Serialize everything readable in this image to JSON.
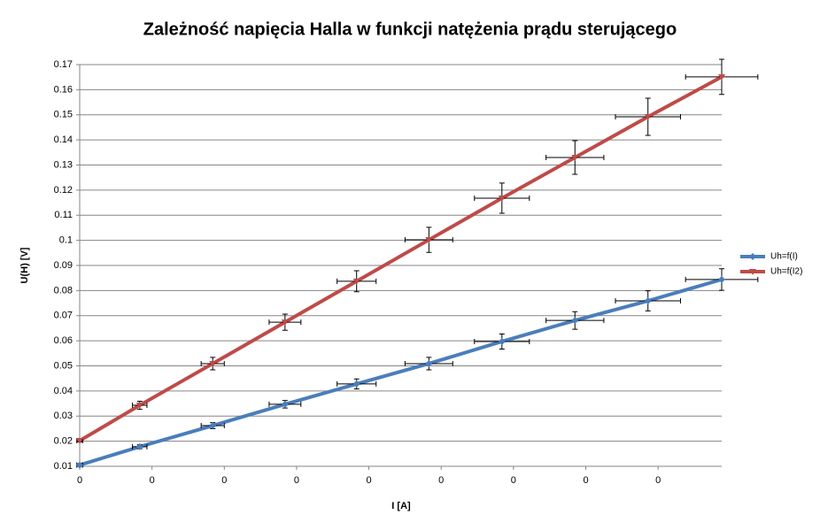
{
  "chart_data": {
    "type": "scatter-line",
    "title": "Zależność napięcia Halla w funkcji natężenia prądu sterującego",
    "x_label": "I [A]",
    "y_label": "U(H) [V]",
    "xlim": [
      0,
      0.00888
    ],
    "ylim": [
      0.01,
      0.17
    ],
    "xticks": [
      {
        "value": 0,
        "label": "0"
      },
      {
        "value": 0.001,
        "label": "0"
      },
      {
        "value": 0.002,
        "label": "0"
      },
      {
        "value": 0.003,
        "label": "0"
      },
      {
        "value": 0.004,
        "label": "0"
      },
      {
        "value": 0.005,
        "label": "0"
      },
      {
        "value": 0.006,
        "label": "0"
      },
      {
        "value": 0.007,
        "label": "0"
      },
      {
        "value": 0.008,
        "label": "0"
      }
    ],
    "yticks": [
      0.01,
      0.02,
      0.03,
      0.04,
      0.05,
      0.06,
      0.07,
      0.08,
      0.09,
      0.1,
      0.11,
      0.12,
      0.13,
      0.14,
      0.15,
      0.16,
      0.17
    ],
    "grid": true,
    "legend": "right",
    "series": [
      {
        "name": "Uh=f(I)",
        "color": "#4a7ebb",
        "marker": "diamond",
        "x": [
          0,
          0.00083,
          0.00184,
          0.00284,
          0.00383,
          0.00483,
          0.00584,
          0.00685,
          0.00786,
          0.00888
        ],
        "values": [
          0.0105,
          0.0178,
          0.0262,
          0.0347,
          0.0428,
          0.0509,
          0.0597,
          0.0681,
          0.0759,
          0.0844
        ],
        "y_errors": [
          0.0005,
          0.0008,
          0.0012,
          0.0015,
          0.002,
          0.0025,
          0.003,
          0.0035,
          0.004,
          0.0043
        ],
        "x_errors": [
          4e-05,
          0.0001,
          0.00016,
          0.00022,
          0.00027,
          0.00033,
          0.00038,
          0.0004,
          0.00045,
          0.0005
        ]
      },
      {
        "name": "Uh=f(I2)",
        "color": "#be4b48",
        "marker": "triangle-down",
        "x": [
          0,
          0.00083,
          0.00184,
          0.00284,
          0.00383,
          0.00483,
          0.00584,
          0.00685,
          0.00786,
          0.00888
        ],
        "values": [
          0.0202,
          0.0343,
          0.0509,
          0.0674,
          0.0837,
          0.1002,
          0.1168,
          0.133,
          0.1492,
          0.1651
        ],
        "y_errors": [
          0.0005,
          0.0016,
          0.0025,
          0.0032,
          0.0042,
          0.005,
          0.006,
          0.0067,
          0.0074,
          0.007
        ],
        "x_errors": [
          4e-05,
          0.0001,
          0.00016,
          0.00022,
          0.00027,
          0.00033,
          0.00038,
          0.0004,
          0.00045,
          0.0005
        ]
      }
    ]
  }
}
